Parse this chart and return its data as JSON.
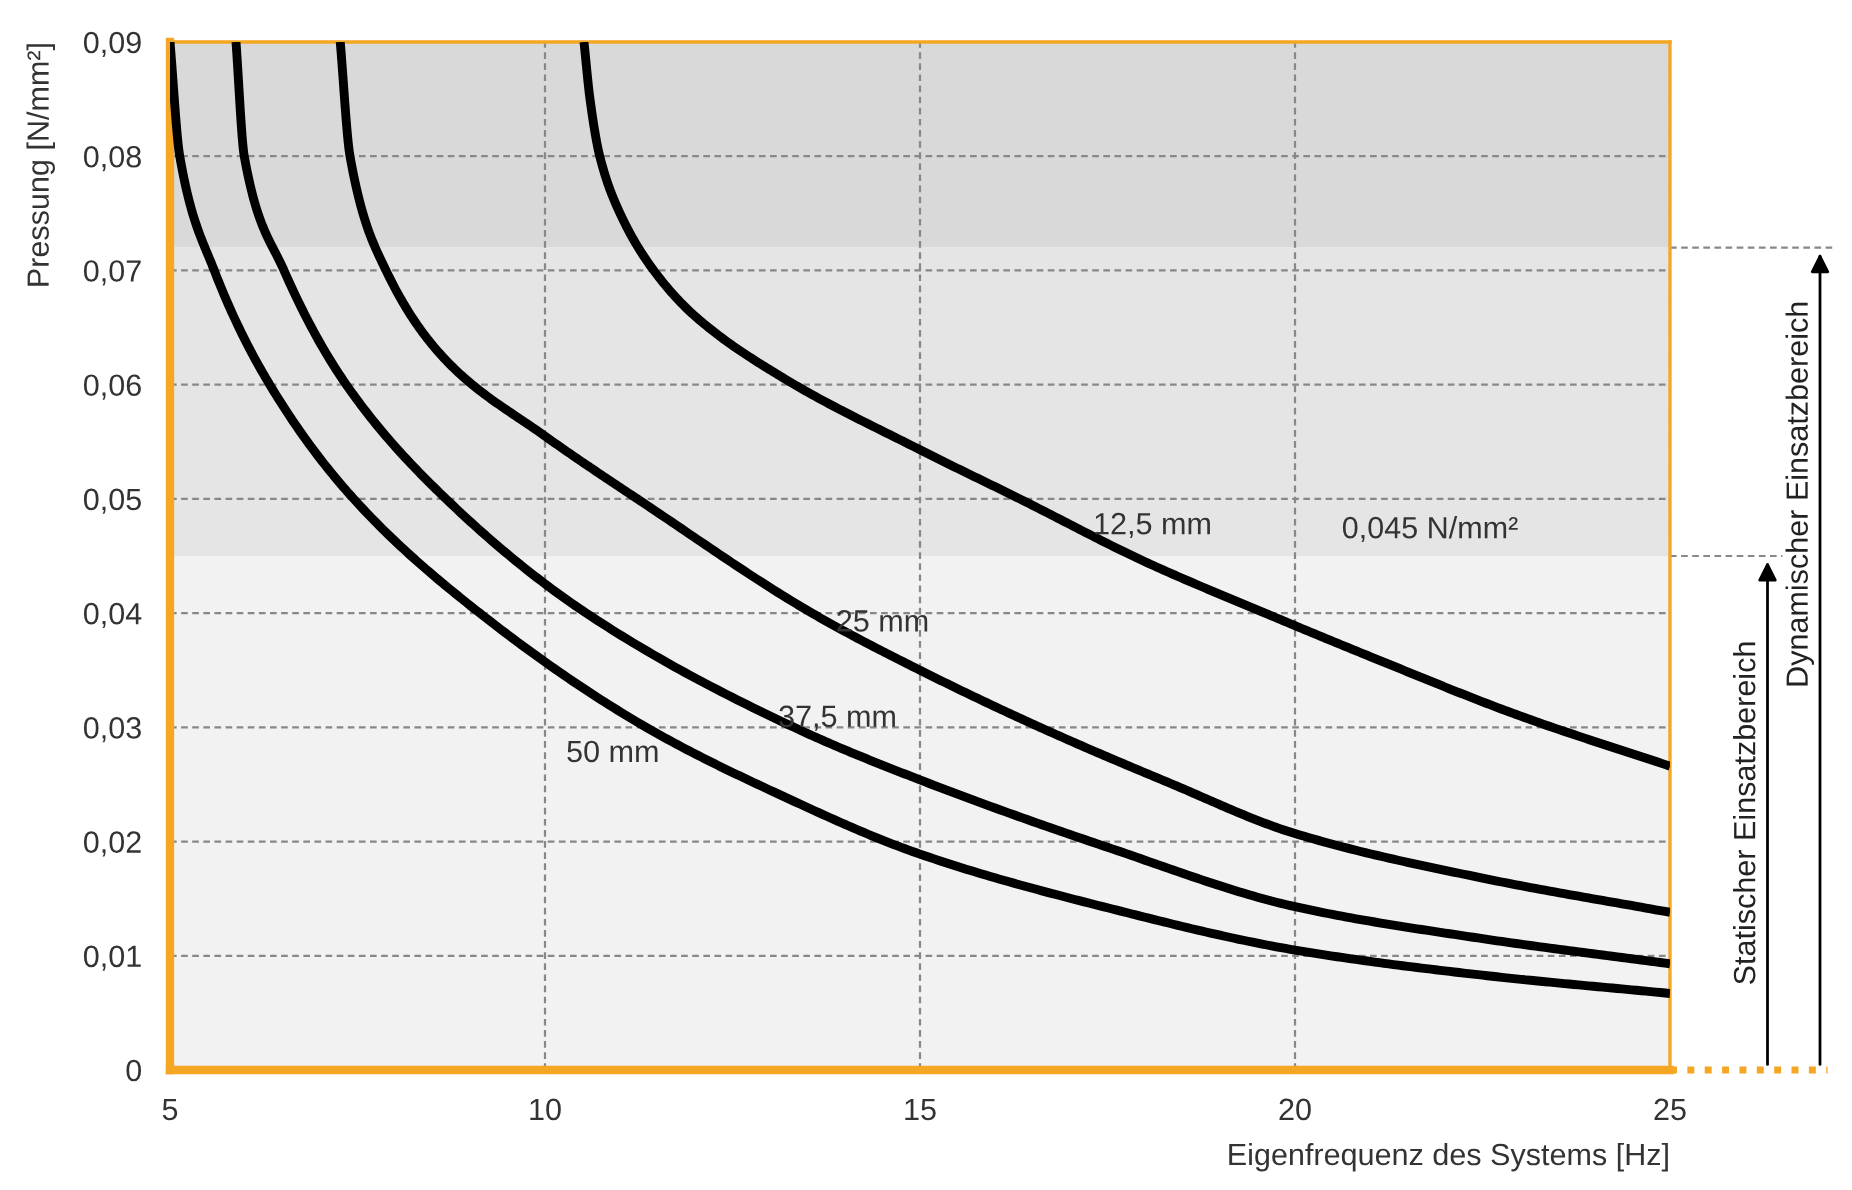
{
  "chart_data": {
    "type": "line",
    "xlabel": "Eigenfrequenz des Systems [Hz]",
    "ylabel": "Pressung [N/mm²]",
    "xlim": [
      5,
      25
    ],
    "ylim": [
      0,
      0.09
    ],
    "xticks": [
      5,
      10,
      15,
      20,
      25
    ],
    "yticks": [
      {
        "value": 0,
        "label": "0"
      },
      {
        "value": 0.01,
        "label": "0,01"
      },
      {
        "value": 0.02,
        "label": "0,02"
      },
      {
        "value": 0.03,
        "label": "0,03"
      },
      {
        "value": 0.04,
        "label": "0,04"
      },
      {
        "value": 0.05,
        "label": "0,05"
      },
      {
        "value": 0.06,
        "label": "0,06"
      },
      {
        "value": 0.07,
        "label": "0,07"
      },
      {
        "value": 0.08,
        "label": "0,08"
      },
      {
        "value": 0.09,
        "label": "0,09"
      }
    ],
    "grid": true,
    "marker": "none",
    "line_style": "solid",
    "series": [
      {
        "name": "12,5 mm",
        "color": "#000000",
        "x": [
          10.52,
          10.6,
          10.73,
          11.0,
          11.45,
          12.0,
          13.2,
          15.0,
          16.33,
          18.0,
          19.6,
          21.0,
          23.0,
          25.0
        ],
        "values": [
          0.09,
          0.085,
          0.08,
          0.075,
          0.07,
          0.066,
          0.0605,
          0.0543,
          0.05,
          0.0445,
          0.04,
          0.0362,
          0.031,
          0.0266
        ]
      },
      {
        "name": "25 mm",
        "color": "#000000",
        "x": [
          7.27,
          7.4,
          7.88,
          8.7,
          10.0,
          11.3,
          13.56,
          15.0,
          16.6,
          18.3,
          20.0,
          22.5,
          25.0
        ],
        "values": [
          0.09,
          0.08,
          0.07,
          0.062,
          0.0555,
          0.0497,
          0.04,
          0.035,
          0.03,
          0.0252,
          0.0207,
          0.0168,
          0.0138
        ]
      },
      {
        "name": "37,5 mm",
        "color": "#000000",
        "x": [
          5.88,
          5.99,
          6.52,
          7.35,
          8.68,
          10.55,
          13.32,
          15.0,
          17.5,
          20.0,
          22.5,
          25.0
        ],
        "values": [
          0.09,
          0.08,
          0.07,
          0.06,
          0.05,
          0.04,
          0.03,
          0.0254,
          0.0195,
          0.0143,
          0.0115,
          0.0093
        ]
      },
      {
        "name": "50 mm",
        "color": "#000000",
        "x": [
          5.0,
          5.13,
          5.59,
          6.33,
          7.45,
          9.13,
          11.35,
          13.0,
          15.0,
          17.5,
          20.0,
          22.5,
          25.0
        ],
        "values": [
          0.09,
          0.08,
          0.07,
          0.06,
          0.05,
          0.04,
          0.03,
          0.0245,
          0.0189,
          0.0142,
          0.0105,
          0.0083,
          0.0067
        ]
      }
    ],
    "bands": [
      {
        "axis": "y",
        "from": 0,
        "to": 0.045,
        "color": "#f2f2f2",
        "label": "Statischer Einsatzbereich"
      },
      {
        "axis": "y",
        "from": 0.045,
        "to": 0.072,
        "color": "#e5e5e5",
        "label": "Dynamischer Einsatzbereich"
      },
      {
        "axis": "y",
        "from": 0.072,
        "to": 0.09,
        "color": "#d9d9d9"
      }
    ],
    "annotations": [
      "0,045 N/mm²"
    ]
  }
}
